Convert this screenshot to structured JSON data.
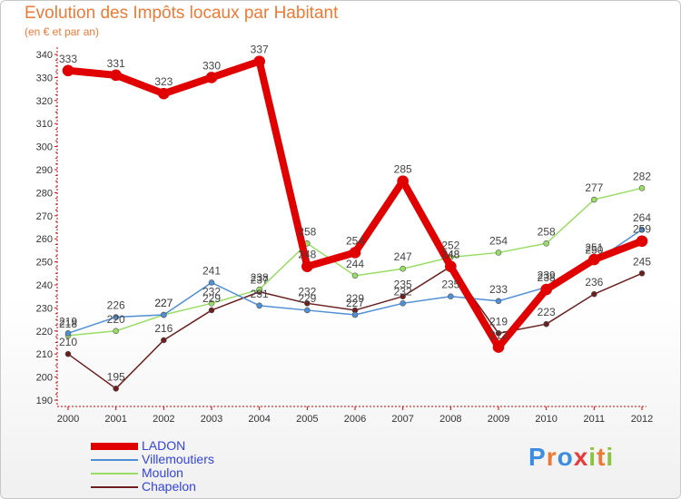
{
  "header": {
    "title": "Evolution des Impôts locaux par Habitant",
    "subtitle": "(en € et par an)"
  },
  "logo": {
    "text": "Proxiti",
    "letters": [
      "P",
      "r",
      "o",
      "x",
      "i",
      "t",
      "i"
    ],
    "colors": [
      "#3c8de0",
      "#ec7a36",
      "#3c8de0",
      "#e83c3c",
      "#8ac43c",
      "#ec7a36",
      "#8ac43c"
    ]
  },
  "chart_data": {
    "type": "line",
    "title": "Evolution des Impôts locaux par Habitant",
    "subtitle": "(en € et par an)",
    "xlabel": "",
    "ylabel": "",
    "ylim": [
      190,
      340
    ],
    "ytick_step": 10,
    "grid": false,
    "legend_position": "bottom-left",
    "categories": [
      "2000",
      "2001",
      "2002",
      "2003",
      "2004",
      "2005",
      "2006",
      "2007",
      "2008",
      "2009",
      "2010",
      "2011",
      "2012"
    ],
    "series": [
      {
        "name": "LADON",
        "color": "#e00000",
        "width": 8,
        "values": [
          333,
          331,
          323,
          330,
          337,
          248,
          254,
          285,
          248,
          213,
          238,
          251,
          259
        ],
        "labels": [
          "333",
          "331",
          "323",
          "330",
          "337",
          "248",
          "254",
          "285",
          "248",
          "213",
          "238",
          "251",
          "259"
        ]
      },
      {
        "name": "Villemoutiers",
        "color": "#4f8fd6",
        "width": 1.5,
        "values": [
          219,
          226,
          227,
          241,
          231,
          229,
          227,
          232,
          235,
          233,
          239,
          250,
          264
        ],
        "labels": [
          "219",
          "226",
          "227",
          "241",
          "231",
          "229",
          "227",
          "232",
          "235",
          "233",
          "239",
          "250",
          "264"
        ]
      },
      {
        "name": "Moulon",
        "color": "#99dd66",
        "width": 1.5,
        "values": [
          218,
          220,
          227,
          232,
          238,
          258,
          244,
          247,
          252,
          254,
          258,
          277,
          282
        ],
        "labels": [
          "218",
          "220",
          "227",
          "232",
          "238",
          "258",
          "244",
          "247",
          "252",
          "254",
          "258",
          "277",
          "282"
        ]
      },
      {
        "name": "Chapelon",
        "color": "#6b1f1f",
        "width": 1.5,
        "values": [
          210,
          195,
          216,
          229,
          237,
          232,
          229,
          235,
          248,
          219,
          223,
          236,
          245
        ],
        "labels": [
          "210",
          "195",
          "216",
          "229",
          "237",
          "232",
          "229",
          "235",
          "248",
          "219",
          "223",
          "236",
          "245"
        ]
      }
    ]
  }
}
